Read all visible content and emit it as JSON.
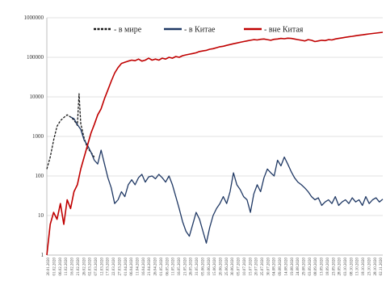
{
  "chart_data": {
    "type": "line",
    "yscale": "log",
    "ylim": [
      1,
      1000000
    ],
    "yticks": [
      "1",
      "10",
      "100",
      "1000",
      "10000",
      "100000",
      "1000000"
    ],
    "grid": true,
    "legend_position": "top",
    "x_tick_labels": [
      "20.01.2020",
      "01.02.2020",
      "06.02.2020",
      "11.02.2020",
      "16.02.2020",
      "21.02.2020",
      "26.02.2020",
      "02.03.2020",
      "07.03.2020",
      "12.03.2020",
      "17.03.2020",
      "22.03.2020",
      "27.03.2020",
      "01.04.2020",
      "06.04.2020",
      "11.04.2020",
      "16.04.2020",
      "21.04.2020",
      "26.04.2020",
      "01.05.2020",
      "06.05.2020",
      "11.05.2020",
      "16.05.2020",
      "21.05.2020",
      "26.05.2020",
      "31.05.2020",
      "05.06.2020",
      "10.06.2020",
      "15.06.2020",
      "20.06.2020",
      "25.06.2020",
      "30.06.2020",
      "05.07.2020",
      "10.07.2020",
      "15.07.2020",
      "20.07.2020",
      "25.07.2020",
      "30.07.2020",
      "04.08.2020",
      "09.08.2020",
      "14.08.2020",
      "19.08.2020",
      "24.08.2020",
      "29.08.2020",
      "03.09.2020",
      "08.09.2020",
      "13.09.2020",
      "18.09.2020",
      "23.09.2020",
      "28.09.2020",
      "03.10.2020",
      "08.10.2020",
      "13.10.2020",
      "18.10.2020",
      "23.10.2020",
      "28.10.2020",
      "02.11.2020"
    ],
    "series": [
      {
        "name": "- в мире",
        "color": "#1a1a1a",
        "style": "dashed",
        "points": [
          [
            0,
            150
          ],
          [
            2,
            300
          ],
          [
            4,
            800
          ],
          [
            6,
            1800
          ],
          [
            8,
            2500
          ],
          [
            10,
            3000
          ],
          [
            12,
            3500
          ],
          [
            14,
            3100
          ],
          [
            16,
            2600
          ],
          [
            18,
            1900
          ],
          [
            19,
            12000
          ],
          [
            20,
            2100
          ],
          [
            22,
            900
          ],
          [
            24,
            500
          ],
          [
            26,
            400
          ],
          [
            28,
            300
          ]
        ]
      },
      {
        "name": "- в Китае",
        "color": "#1f3864",
        "style": "solid",
        "points": [
          [
            14,
            3100
          ],
          [
            16,
            2800
          ],
          [
            18,
            2000
          ],
          [
            20,
            1500
          ],
          [
            22,
            800
          ],
          [
            24,
            600
          ],
          [
            26,
            400
          ],
          [
            28,
            250
          ],
          [
            30,
            200
          ],
          [
            32,
            450
          ],
          [
            34,
            200
          ],
          [
            36,
            90
          ],
          [
            38,
            50
          ],
          [
            40,
            20
          ],
          [
            42,
            25
          ],
          [
            44,
            40
          ],
          [
            46,
            30
          ],
          [
            48,
            60
          ],
          [
            50,
            80
          ],
          [
            52,
            60
          ],
          [
            54,
            90
          ],
          [
            56,
            110
          ],
          [
            58,
            70
          ],
          [
            60,
            95
          ],
          [
            62,
            100
          ],
          [
            64,
            85
          ],
          [
            66,
            110
          ],
          [
            68,
            90
          ],
          [
            70,
            70
          ],
          [
            72,
            100
          ],
          [
            74,
            60
          ],
          [
            76,
            30
          ],
          [
            78,
            15
          ],
          [
            80,
            7
          ],
          [
            82,
            4
          ],
          [
            84,
            3
          ],
          [
            86,
            6
          ],
          [
            88,
            12
          ],
          [
            90,
            8
          ],
          [
            92,
            4
          ],
          [
            94,
            2
          ],
          [
            96,
            5
          ],
          [
            98,
            10
          ],
          [
            100,
            15
          ],
          [
            102,
            20
          ],
          [
            104,
            30
          ],
          [
            106,
            20
          ],
          [
            108,
            40
          ],
          [
            110,
            120
          ],
          [
            112,
            60
          ],
          [
            114,
            45
          ],
          [
            116,
            30
          ],
          [
            118,
            25
          ],
          [
            120,
            12
          ],
          [
            122,
            35
          ],
          [
            124,
            60
          ],
          [
            126,
            40
          ],
          [
            128,
            90
          ],
          [
            130,
            150
          ],
          [
            132,
            120
          ],
          [
            134,
            100
          ],
          [
            136,
            250
          ],
          [
            138,
            180
          ],
          [
            140,
            300
          ],
          [
            142,
            200
          ],
          [
            144,
            130
          ],
          [
            146,
            90
          ],
          [
            148,
            70
          ],
          [
            150,
            60
          ],
          [
            152,
            50
          ],
          [
            154,
            40
          ],
          [
            156,
            30
          ],
          [
            158,
            25
          ],
          [
            160,
            28
          ],
          [
            162,
            18
          ],
          [
            164,
            22
          ],
          [
            166,
            25
          ],
          [
            168,
            20
          ],
          [
            170,
            30
          ],
          [
            172,
            18
          ],
          [
            174,
            22
          ],
          [
            176,
            25
          ],
          [
            178,
            20
          ],
          [
            180,
            28
          ],
          [
            182,
            22
          ],
          [
            184,
            25
          ],
          [
            186,
            18
          ],
          [
            188,
            30
          ],
          [
            190,
            20
          ],
          [
            192,
            25
          ],
          [
            194,
            28
          ],
          [
            196,
            22
          ],
          [
            198,
            26
          ]
        ]
      },
      {
        "name": "- вне Китая",
        "color": "#c00000",
        "style": "solid",
        "points": [
          [
            0,
            1
          ],
          [
            2,
            6
          ],
          [
            4,
            12
          ],
          [
            6,
            8
          ],
          [
            8,
            20
          ],
          [
            10,
            6
          ],
          [
            12,
            25
          ],
          [
            14,
            15
          ],
          [
            16,
            40
          ],
          [
            18,
            60
          ],
          [
            20,
            150
          ],
          [
            22,
            300
          ],
          [
            24,
            600
          ],
          [
            26,
            1200
          ],
          [
            28,
            2000
          ],
          [
            30,
            3500
          ],
          [
            32,
            5000
          ],
          [
            34,
            9000
          ],
          [
            36,
            15000
          ],
          [
            38,
            25000
          ],
          [
            40,
            40000
          ],
          [
            42,
            55000
          ],
          [
            44,
            70000
          ],
          [
            46,
            75000
          ],
          [
            48,
            80000
          ],
          [
            50,
            85000
          ],
          [
            52,
            82000
          ],
          [
            54,
            90000
          ],
          [
            56,
            80000
          ],
          [
            58,
            85000
          ],
          [
            60,
            95000
          ],
          [
            62,
            85000
          ],
          [
            64,
            90000
          ],
          [
            66,
            85000
          ],
          [
            68,
            95000
          ],
          [
            70,
            90000
          ],
          [
            72,
            100000
          ],
          [
            74,
            95000
          ],
          [
            76,
            105000
          ],
          [
            78,
            100000
          ],
          [
            80,
            110000
          ],
          [
            82,
            115000
          ],
          [
            84,
            120000
          ],
          [
            86,
            125000
          ],
          [
            88,
            130000
          ],
          [
            90,
            140000
          ],
          [
            92,
            145000
          ],
          [
            94,
            150000
          ],
          [
            96,
            160000
          ],
          [
            98,
            165000
          ],
          [
            100,
            175000
          ],
          [
            102,
            185000
          ],
          [
            104,
            190000
          ],
          [
            106,
            200000
          ],
          [
            108,
            210000
          ],
          [
            110,
            220000
          ],
          [
            112,
            230000
          ],
          [
            114,
            240000
          ],
          [
            116,
            250000
          ],
          [
            118,
            260000
          ],
          [
            120,
            270000
          ],
          [
            122,
            280000
          ],
          [
            124,
            275000
          ],
          [
            126,
            285000
          ],
          [
            128,
            290000
          ],
          [
            130,
            280000
          ],
          [
            132,
            270000
          ],
          [
            134,
            285000
          ],
          [
            136,
            290000
          ],
          [
            138,
            300000
          ],
          [
            140,
            295000
          ],
          [
            142,
            305000
          ],
          [
            144,
            300000
          ],
          [
            146,
            290000
          ],
          [
            148,
            280000
          ],
          [
            150,
            270000
          ],
          [
            152,
            260000
          ],
          [
            154,
            280000
          ],
          [
            156,
            270000
          ],
          [
            158,
            250000
          ],
          [
            160,
            260000
          ],
          [
            162,
            270000
          ],
          [
            164,
            265000
          ],
          [
            166,
            280000
          ],
          [
            168,
            275000
          ],
          [
            170,
            290000
          ],
          [
            172,
            300000
          ],
          [
            174,
            310000
          ],
          [
            176,
            320000
          ],
          [
            178,
            330000
          ],
          [
            180,
            340000
          ],
          [
            182,
            350000
          ],
          [
            184,
            360000
          ],
          [
            186,
            370000
          ],
          [
            188,
            380000
          ],
          [
            190,
            390000
          ],
          [
            192,
            400000
          ],
          [
            194,
            410000
          ],
          [
            196,
            420000
          ],
          [
            198,
            430000
          ]
        ]
      }
    ]
  }
}
